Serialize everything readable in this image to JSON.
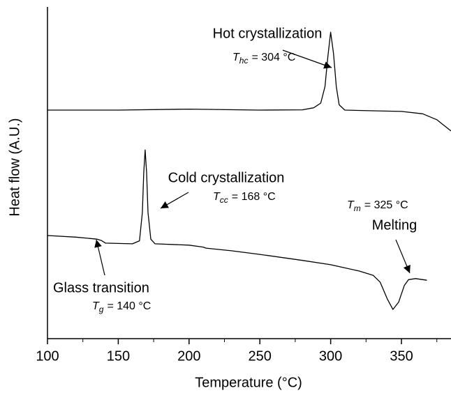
{
  "chart_data": {
    "type": "line",
    "x_label": "Temperature (°C)",
    "y_label": "Heat flow (A.U.)",
    "xlim": [
      100,
      385
    ],
    "ylim": [
      0,
      100
    ],
    "xticks": [
      100,
      150,
      200,
      250,
      300,
      350
    ],
    "xminorticks": [
      125,
      175,
      225,
      275,
      325,
      375
    ],
    "series": [
      {
        "color": "#000000",
        "x": [
          100,
          150,
          200,
          250,
          280,
          288,
          293,
          296,
          298,
          300,
          302,
          304,
          306,
          310,
          330,
          350,
          365,
          375,
          385
        ],
        "values": [
          68.9,
          68.9,
          69.2,
          68.9,
          69,
          69.6,
          71,
          76,
          85,
          92.4,
          86,
          76,
          70.5,
          68.9,
          68.7,
          68.5,
          67.8,
          66,
          62.6
        ]
      },
      {
        "color": "#000000",
        "x": [
          100,
          120,
          135,
          138,
          141,
          150,
          160,
          165,
          167,
          168,
          169,
          170,
          171,
          173,
          176,
          200,
          210,
          212,
          230,
          250,
          280,
          300,
          320,
          330,
          335,
          340,
          344,
          348,
          352,
          355,
          360,
          368
        ],
        "values": [
          31.1,
          30.6,
          30.0,
          29.6,
          28.8,
          28.7,
          28.6,
          29.5,
          38,
          50,
          56.9,
          50,
          38,
          30,
          28.6,
          28.2,
          27.6,
          27.3,
          26.5,
          25.4,
          23.6,
          22.3,
          20.4,
          19.1,
          17,
          12,
          8.8,
          11,
          16,
          17.8,
          18.1,
          17.6
        ]
      }
    ],
    "annotations": [
      {
        "label": "Hot crystallization",
        "symbol": "T",
        "subscript": "hc",
        "equation": "= 304 °C"
      },
      {
        "label": "Cold crystallization",
        "symbol": "T",
        "subscript": "cc",
        "equation": "= 168 °C"
      },
      {
        "label": "Melting",
        "symbol": "T",
        "subscript": "m",
        "equation": "= 325 °C"
      },
      {
        "label": "Glass transition",
        "symbol": "T",
        "subscript": "g",
        "equation": "= 140 °C"
      }
    ]
  }
}
